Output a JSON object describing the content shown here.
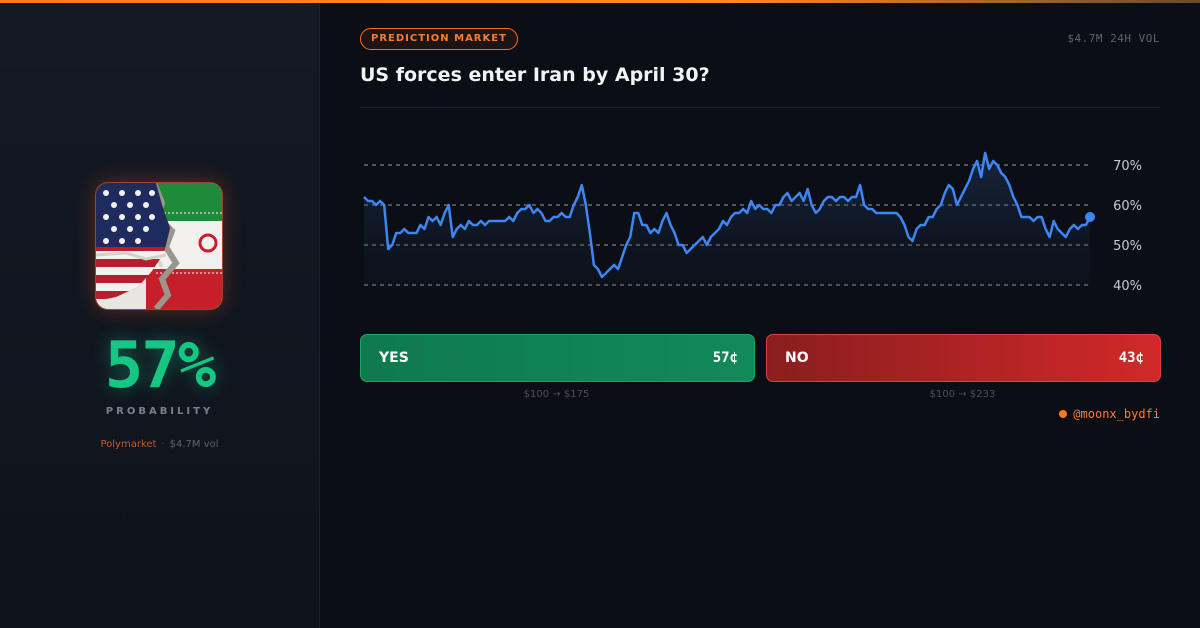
{
  "left_panel": {
    "probability": "57%",
    "probability_label": "PROBABILITY",
    "source": "Polymarket",
    "volume": "$4.7M vol"
  },
  "header": {
    "badge": "PREDICTION MARKET",
    "volume": "$4.7M 24H VOL",
    "title": "US forces enter Iran by April 30?"
  },
  "chart_data": {
    "type": "area",
    "title": "",
    "xlabel": "",
    "ylabel": "",
    "ylim": [
      40,
      75
    ],
    "yticks": [
      "70%",
      "60%",
      "50%",
      "40%"
    ],
    "y_tick_values": [
      70,
      60,
      50,
      40
    ],
    "grid": "dashed horizontal",
    "legend": "none",
    "line_color": "#3d86f5",
    "series": [
      {
        "values": [
          62,
          61,
          61,
          60,
          61,
          60,
          49,
          50,
          53,
          53,
          54,
          53,
          53,
          53,
          55,
          54,
          57,
          56,
          57,
          55,
          58,
          60,
          52,
          54,
          55,
          54,
          56,
          55,
          55,
          56,
          55,
          56,
          56,
          56,
          56,
          56,
          57,
          56,
          58,
          59,
          59,
          60,
          58,
          59,
          58,
          56,
          56,
          57,
          57,
          58,
          57,
          57,
          60,
          62,
          65,
          60,
          53,
          45,
          44,
          42,
          43,
          44,
          45,
          44,
          47,
          50,
          52,
          58,
          58,
          55,
          55,
          53,
          54,
          53,
          56,
          58,
          55,
          53,
          50,
          50,
          48,
          49,
          50,
          51,
          52,
          50,
          52,
          53,
          54,
          56,
          55,
          57,
          58,
          58,
          59,
          58,
          61,
          59,
          60,
          59,
          59,
          58,
          60,
          60,
          62,
          63,
          61,
          62,
          63,
          61,
          64,
          60,
          58,
          59,
          61,
          62,
          62,
          61,
          62,
          62,
          61,
          62,
          62,
          65,
          60,
          59,
          59,
          58,
          58,
          58,
          58,
          58,
          58,
          57,
          55,
          52,
          51,
          54,
          55,
          55,
          57,
          57,
          59,
          60,
          63,
          65,
          64,
          60,
          62,
          64,
          66,
          69,
          71,
          67,
          73,
          69,
          71,
          70,
          68,
          67,
          65,
          62,
          60,
          57,
          57,
          57,
          56,
          57,
          57,
          54,
          52,
          56,
          54,
          53,
          52,
          54,
          55,
          54,
          55,
          55,
          57
        ]
      }
    ],
    "last_value": 57
  },
  "buttons": {
    "yes": {
      "label": "YES",
      "price": "57¢",
      "payout": "$100 → $175"
    },
    "no": {
      "label": "NO",
      "price": "43¢",
      "payout": "$100 → $233"
    }
  },
  "handle": "@moonx_bydfi",
  "colors": {
    "accent": "#ff7a18",
    "yes": "#16c784",
    "no": "#d2282a",
    "line": "#3d86f5"
  }
}
